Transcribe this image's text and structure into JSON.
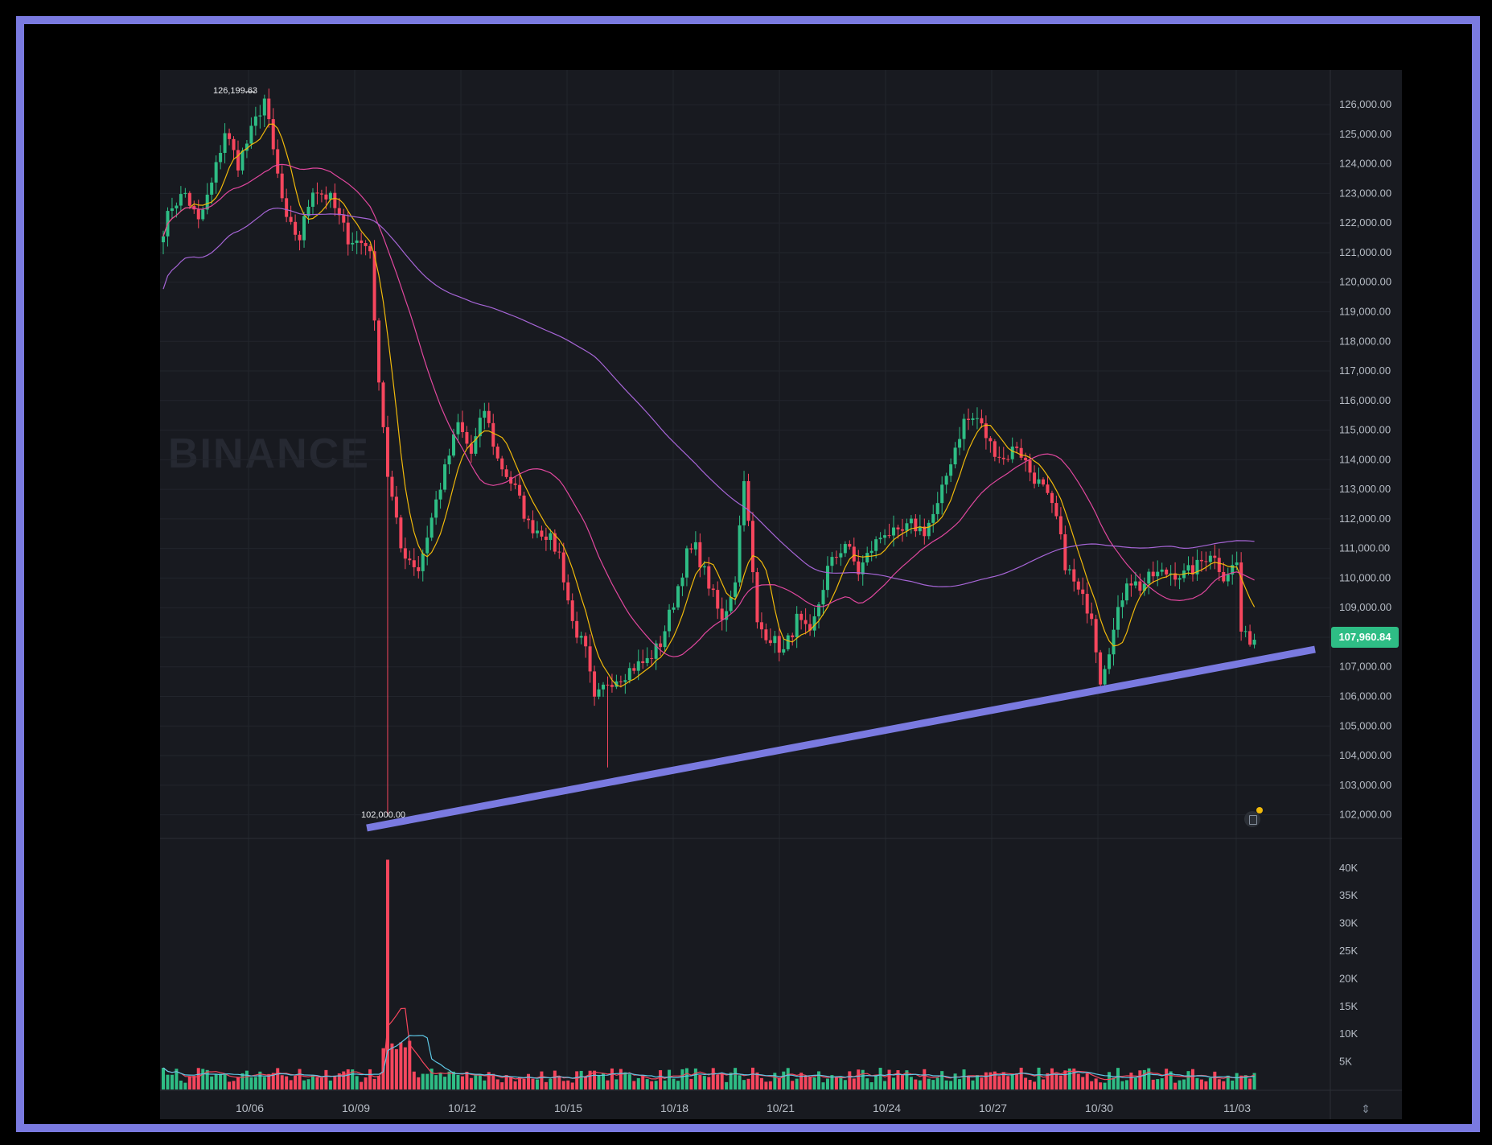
{
  "chart_data": {
    "type": "candlestick",
    "watermark": "BINANCE",
    "current_price_label": "107,960.84",
    "high_label": "126,199.63",
    "low_label": "102,000.00",
    "price_axis": {
      "range": [
        101200,
        126900
      ],
      "ticks": [
        "126,000.00",
        "125,000.00",
        "124,000.00",
        "123,000.00",
        "122,000.00",
        "121,000.00",
        "120,000.00",
        "119,000.00",
        "118,000.00",
        "117,000.00",
        "116,000.00",
        "115,000.00",
        "114,000.00",
        "113,000.00",
        "112,000.00",
        "111,000.00",
        "110,000.00",
        "109,000.00",
        "108,000.00",
        "107,000.00",
        "106,000.00",
        "105,000.00",
        "104,000.00",
        "103,000.00",
        "102,000.00"
      ]
    },
    "volume_axis": {
      "range": [
        0,
        42000
      ],
      "ticks": [
        "40K",
        "35K",
        "30K",
        "25K",
        "20K",
        "15K",
        "10K",
        "5K"
      ]
    },
    "x_axis": {
      "ticks": [
        "10/06",
        "10/09",
        "10/12",
        "10/15",
        "10/18",
        "10/21",
        "10/24",
        "10/27",
        "10/30",
        "11/03"
      ]
    },
    "price_anchors": [
      [
        0,
        121800
      ],
      [
        2,
        122600
      ],
      [
        5,
        123000
      ],
      [
        8,
        122000
      ],
      [
        11,
        123300
      ],
      [
        14,
        125100
      ],
      [
        17,
        124000
      ],
      [
        19,
        124700
      ],
      [
        23,
        126199
      ],
      [
        25,
        124400
      ],
      [
        28,
        122000
      ],
      [
        31,
        121500
      ],
      [
        34,
        123200
      ],
      [
        38,
        122800
      ],
      [
        42,
        121500
      ],
      [
        47,
        121200
      ],
      [
        48,
        118500
      ],
      [
        51,
        113500
      ],
      [
        54,
        111000
      ],
      [
        58,
        110300
      ],
      [
        62,
        112600
      ],
      [
        67,
        115200
      ],
      [
        70,
        114200
      ],
      [
        73,
        115700
      ],
      [
        76,
        114000
      ],
      [
        80,
        113000
      ],
      [
        83,
        111800
      ],
      [
        87,
        111500
      ],
      [
        90,
        110800
      ],
      [
        93,
        108500
      ],
      [
        96,
        107500
      ],
      [
        98,
        105800
      ],
      [
        101,
        106500
      ],
      [
        104,
        106700
      ],
      [
        107,
        107000
      ],
      [
        110,
        107200
      ],
      [
        113,
        107800
      ],
      [
        116,
        109200
      ],
      [
        119,
        110800
      ],
      [
        121,
        111000
      ],
      [
        124,
        109800
      ],
      [
        127,
        108500
      ],
      [
        130,
        110000
      ],
      [
        132,
        113500
      ],
      [
        135,
        108400
      ],
      [
        138,
        108000
      ],
      [
        141,
        107500
      ],
      [
        144,
        108600
      ],
      [
        147,
        108000
      ],
      [
        151,
        110300
      ],
      [
        155,
        111200
      ],
      [
        158,
        110200
      ],
      [
        161,
        111000
      ],
      [
        164,
        111600
      ],
      [
        167,
        111400
      ],
      [
        170,
        111800
      ],
      [
        173,
        111600
      ],
      [
        176,
        112400
      ],
      [
        179,
        114000
      ],
      [
        182,
        115300
      ],
      [
        185,
        115400
      ],
      [
        188,
        114500
      ],
      [
        191,
        114000
      ],
      [
        194,
        114500
      ],
      [
        197,
        113600
      ],
      [
        200,
        113000
      ],
      [
        203,
        112000
      ],
      [
        205,
        110500
      ],
      [
        208,
        109500
      ],
      [
        211,
        108800
      ],
      [
        213,
        106600
      ],
      [
        216,
        108200
      ],
      [
        219,
        110000
      ],
      [
        222,
        109700
      ],
      [
        225,
        110100
      ],
      [
        229,
        110200
      ],
      [
        232,
        110100
      ],
      [
        235,
        110400
      ],
      [
        238,
        110900
      ],
      [
        241,
        110100
      ],
      [
        244,
        110500
      ],
      [
        245,
        108200
      ],
      [
        246,
        107960
      ]
    ],
    "volume_notes": "Daily spike on 10/10 reaching ~41.5K; typical bars 1K-8K"
  }
}
